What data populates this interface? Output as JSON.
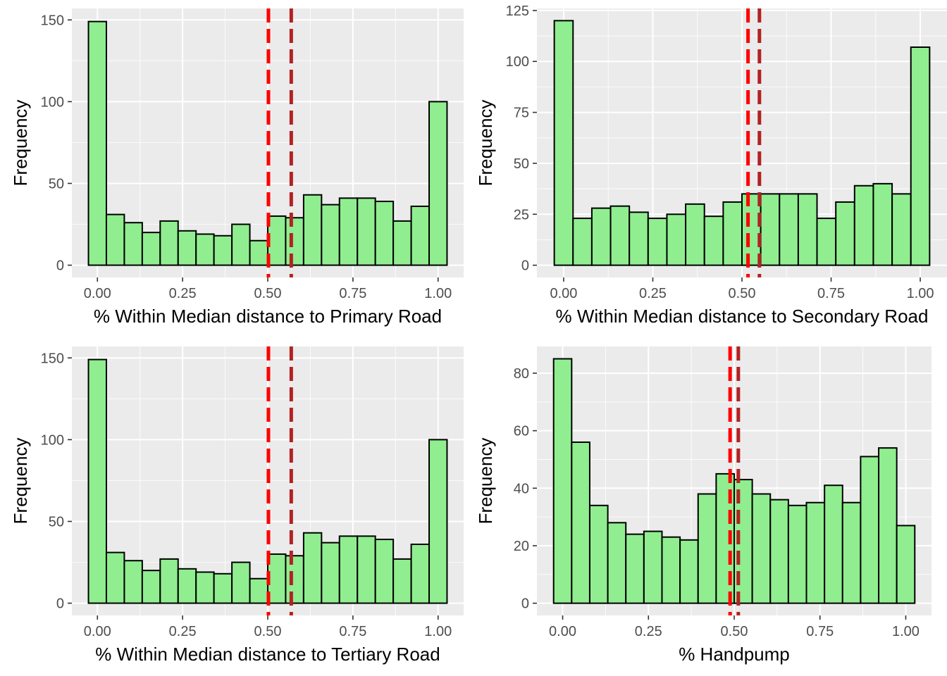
{
  "figure": {
    "colors": {
      "panel_background": "#ebebeb",
      "grid": "#ffffff",
      "bar_fill": "#90ee90",
      "bar_outline": "#000000",
      "mean_line": "#ff0000",
      "median_line": "#b22222",
      "tick_text": "#4d4d4d"
    }
  },
  "chart_data": [
    {
      "type": "bar",
      "subtype": "histogram",
      "title": "",
      "xlabel": "% Within Median distance to Primary Road",
      "ylabel": "Frequency",
      "xlim": [
        -0.075,
        1.075
      ],
      "ylim": [
        -7.5,
        157
      ],
      "xticks": [
        0,
        0.25,
        0.5,
        0.75,
        1.0
      ],
      "xtick_labels": [
        "0.00",
        "0.25",
        "0.50",
        "0.75",
        "1.00"
      ],
      "yticks": [
        0,
        50,
        100,
        150
      ],
      "ytick_labels": [
        "0",
        "50",
        "100",
        "150"
      ],
      "grid": true,
      "bin_width": 0.0526,
      "bin_centers": [
        0.0,
        0.0526,
        0.1053,
        0.1579,
        0.2105,
        0.2632,
        0.3158,
        0.3684,
        0.4211,
        0.4737,
        0.5263,
        0.5789,
        0.6316,
        0.6842,
        0.7368,
        0.7895,
        0.8421,
        0.8947,
        0.9474,
        1.0
      ],
      "values": [
        149,
        31,
        26,
        20,
        27,
        21,
        19,
        18,
        25,
        15,
        30,
        29,
        43,
        37,
        41,
        41,
        39,
        27,
        36,
        100
      ],
      "reference_lines": [
        {
          "x": 0.502,
          "color": "#ff0000"
        },
        {
          "x": 0.569,
          "color": "#b22222"
        }
      ]
    },
    {
      "type": "bar",
      "subtype": "histogram",
      "title": "",
      "xlabel": "% Within Median distance to Secondary Road",
      "ylabel": "Frequency",
      "xlim": [
        -0.075,
        1.075
      ],
      "ylim": [
        -6,
        126
      ],
      "xticks": [
        0,
        0.25,
        0.5,
        0.75,
        1.0
      ],
      "xtick_labels": [
        "0.00",
        "0.25",
        "0.50",
        "0.75",
        "1.00"
      ],
      "yticks": [
        0,
        25,
        50,
        75,
        100,
        125
      ],
      "ytick_labels": [
        "0",
        "25",
        "50",
        "75",
        "100",
        "125"
      ],
      "grid": true,
      "bin_width": 0.0526,
      "bin_centers": [
        0.0,
        0.0526,
        0.1053,
        0.1579,
        0.2105,
        0.2632,
        0.3158,
        0.3684,
        0.4211,
        0.4737,
        0.5263,
        0.5789,
        0.6316,
        0.6842,
        0.7368,
        0.7895,
        0.8421,
        0.8947,
        0.9474,
        1.0
      ],
      "values": [
        120,
        23,
        28,
        29,
        26,
        23,
        25,
        30,
        24,
        31,
        35,
        35,
        35,
        35,
        23,
        31,
        39,
        40,
        35,
        107
      ],
      "reference_lines": [
        {
          "x": 0.517,
          "color": "#ff0000"
        },
        {
          "x": 0.549,
          "color": "#b22222"
        }
      ]
    },
    {
      "type": "bar",
      "subtype": "histogram",
      "title": "",
      "xlabel": "% Within Median distance to Tertiary Road",
      "ylabel": "Frequency",
      "xlim": [
        -0.075,
        1.075
      ],
      "ylim": [
        -7.5,
        157
      ],
      "xticks": [
        0,
        0.25,
        0.5,
        0.75,
        1.0
      ],
      "xtick_labels": [
        "0.00",
        "0.25",
        "0.50",
        "0.75",
        "1.00"
      ],
      "yticks": [
        0,
        50,
        100,
        150
      ],
      "ytick_labels": [
        "0",
        "50",
        "100",
        "150"
      ],
      "grid": true,
      "bin_width": 0.0526,
      "bin_centers": [
        0.0,
        0.0526,
        0.1053,
        0.1579,
        0.2105,
        0.2632,
        0.3158,
        0.3684,
        0.4211,
        0.4737,
        0.5263,
        0.5789,
        0.6316,
        0.6842,
        0.7368,
        0.7895,
        0.8421,
        0.8947,
        0.9474,
        1.0
      ],
      "values": [
        149,
        31,
        26,
        20,
        27,
        21,
        19,
        18,
        25,
        15,
        30,
        29,
        43,
        37,
        41,
        41,
        39,
        27,
        36,
        100
      ],
      "reference_lines": [
        {
          "x": 0.502,
          "color": "#ff0000"
        },
        {
          "x": 0.569,
          "color": "#b22222"
        }
      ]
    },
    {
      "type": "bar",
      "subtype": "histogram",
      "title": "",
      "xlabel": "% Handpump",
      "ylabel": "Frequency",
      "xlim": [
        -0.075,
        1.075
      ],
      "ylim": [
        -4.25,
        89.3
      ],
      "xticks": [
        0,
        0.25,
        0.5,
        0.75,
        1.0
      ],
      "xtick_labels": [
        "0.00",
        "0.25",
        "0.50",
        "0.75",
        "1.00"
      ],
      "yticks": [
        0,
        20,
        40,
        60,
        80
      ],
      "ytick_labels": [
        "0",
        "20",
        "40",
        "60",
        "80"
      ],
      "grid": true,
      "bin_width": 0.0526,
      "bin_centers": [
        0.0,
        0.0526,
        0.1053,
        0.1579,
        0.2105,
        0.2632,
        0.3158,
        0.3684,
        0.4211,
        0.4737,
        0.5263,
        0.5789,
        0.6316,
        0.6842,
        0.7368,
        0.7895,
        0.8421,
        0.8947,
        0.9474,
        1.0
      ],
      "values": [
        85,
        56,
        34,
        28,
        24,
        25,
        23,
        22,
        38,
        45,
        43,
        38,
        36,
        34,
        35,
        41,
        35,
        51,
        54,
        27
      ],
      "reference_lines": [
        {
          "x": 0.488,
          "color": "#ff0000"
        },
        {
          "x": 0.512,
          "color": "#b22222"
        }
      ]
    }
  ]
}
